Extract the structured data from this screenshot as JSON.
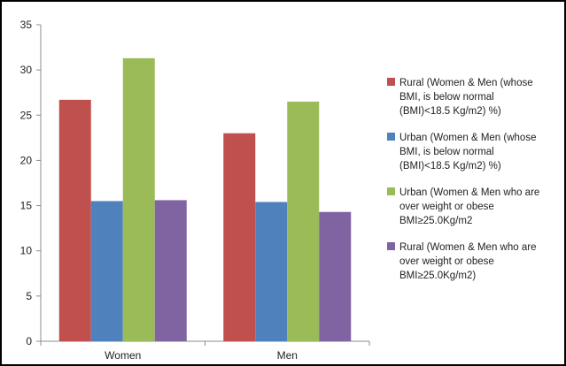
{
  "chart_data": {
    "type": "bar",
    "categories": [
      "Women",
      "Men"
    ],
    "series": [
      {
        "name": "Rural (Women & Men (whose BMI, is below normal (BMI)<18.5 Kg/m2) %)",
        "legend_lines": [
          "Rural (Women & Men (whose",
          "BMI, is below normal",
          "(BMI)<18.5 Kg/m2) %)"
        ],
        "color": "#c0504d",
        "values": [
          26.7,
          23.0
        ]
      },
      {
        "name": "Urban (Women & Men (whose BMI, is below normal (BMI)<18.5 Kg/m2) %)",
        "legend_lines": [
          "Urban (Women & Men (whose",
          "BMI, is below normal",
          "(BMI)<18.5 Kg/m2) %)"
        ],
        "color": "#4f81bd",
        "values": [
          15.5,
          15.4
        ]
      },
      {
        "name": "Urban (Women & Men who are over weight or obese BMI≥25.0Kg/m2",
        "legend_lines": [
          "Urban (Women & Men who are",
          "over weight or obese",
          "BMI≥25.0Kg/m2"
        ],
        "color": "#9bbb59",
        "values": [
          31.3,
          26.5
        ]
      },
      {
        "name": "Rural (Women & Men who are over weight or obese BMI≥25.0Kg/m2)",
        "legend_lines": [
          "Rural (Women & Men who are",
          "over weight or obese",
          "BMI≥25.0Kg/m2)"
        ],
        "color": "#8064a2",
        "values": [
          15.6,
          14.3
        ]
      }
    ],
    "ylim": [
      0,
      35
    ],
    "yticks": [
      0,
      5,
      10,
      15,
      20,
      25,
      30,
      35
    ],
    "title": "",
    "xlabel": "",
    "ylabel": "",
    "grid": false,
    "legend_position": "right"
  }
}
